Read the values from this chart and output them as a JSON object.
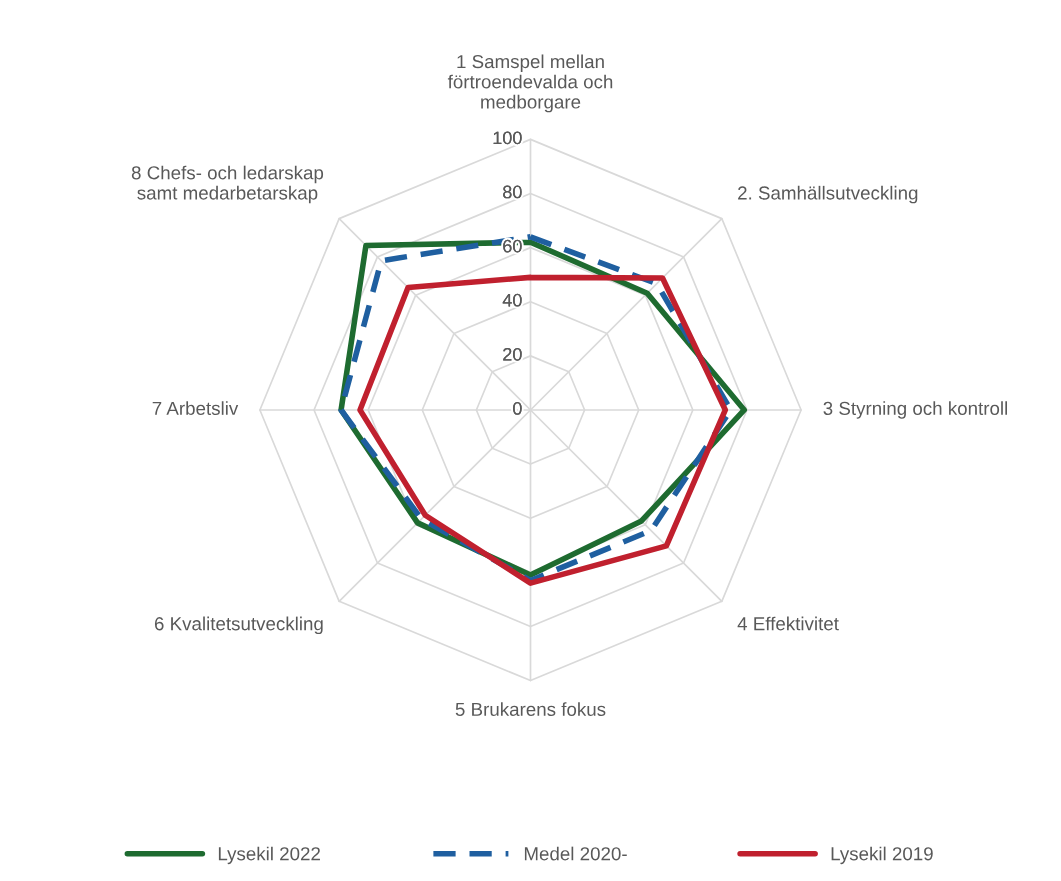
{
  "chart_data": {
    "type": "radar",
    "categories": [
      "1 Samspel mellan förtroendevalda och medborgare",
      "2. Samhällsutveckling",
      "3 Styrning och kontroll",
      "4 Effektivitet",
      "5 Brukarens fokus",
      "6 Kvalitetsutveckling",
      "7 Arbetsliv",
      "8 Chefs- och ledarskap samt medarbetarskap"
    ],
    "series": [
      {
        "name": "Lysekil 2022",
        "color": "#1e6b30",
        "line_style": "solid",
        "values": [
          62,
          61,
          79,
          58,
          61,
          59,
          70,
          86
        ]
      },
      {
        "name": "Medel 2020-",
        "color": "#1f5fa0",
        "line_style": "dashed",
        "values": [
          64,
          66,
          74,
          63,
          63,
          57,
          70,
          78
        ]
      },
      {
        "name": "Lysekil 2019",
        "color": "#c0202e",
        "line_style": "solid",
        "values": [
          49,
          69,
          72,
          71,
          64,
          55,
          63,
          64
        ]
      }
    ],
    "ylim": [
      0,
      100
    ],
    "yticks": [
      0,
      20,
      40,
      60,
      80,
      100
    ],
    "grid": true,
    "legend": "bottom",
    "marker": "none"
  }
}
